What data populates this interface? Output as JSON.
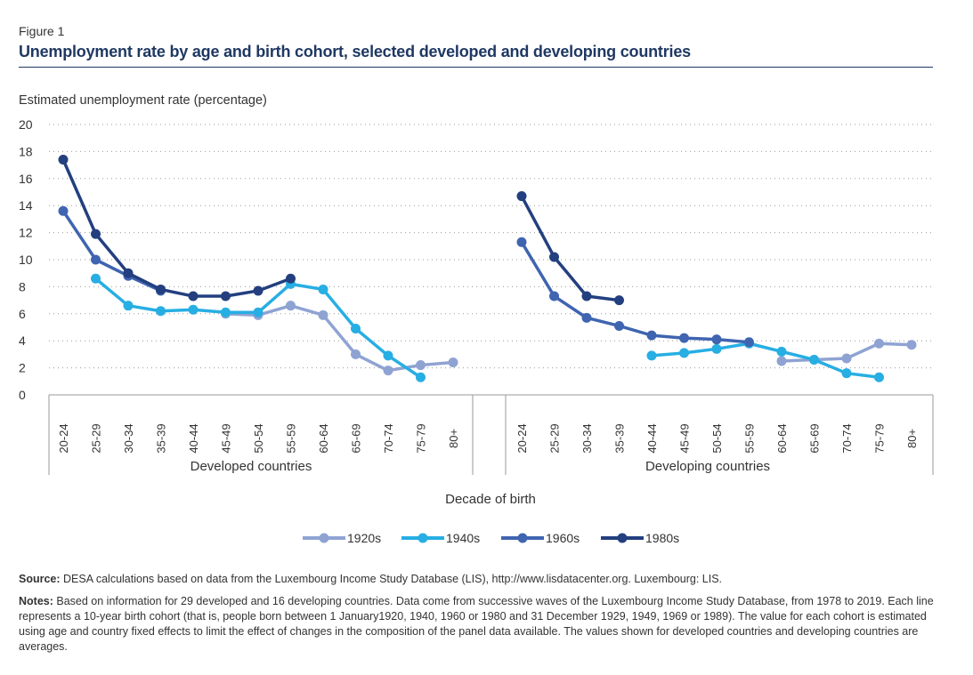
{
  "figure": {
    "label": "Figure 1",
    "title": "Unemployment rate by age and birth cohort, selected developed and developing countries"
  },
  "chart_data": {
    "type": "line",
    "ylabel": "Estimated unemployment rate (percentage)",
    "xlabel": "Decade of birth",
    "ylim": [
      0,
      20
    ],
    "yticks": [
      0,
      2,
      4,
      6,
      8,
      10,
      12,
      14,
      16,
      18,
      20
    ],
    "grid": true,
    "legend_position": "bottom",
    "categories": [
      "20-24",
      "25-29",
      "30-34",
      "35-39",
      "40-44",
      "45-49",
      "50-54",
      "55-59",
      "60-64",
      "65-69",
      "70-74",
      "75-79",
      "80+"
    ],
    "panels": [
      {
        "name": "Developed countries",
        "series": [
          {
            "name": "1920s",
            "color": "#8fa3d3",
            "values": [
              null,
              null,
              null,
              null,
              null,
              6.0,
              5.9,
              6.6,
              5.9,
              3.0,
              1.8,
              2.2,
              2.4
            ]
          },
          {
            "name": "1940s",
            "color": "#27aee3",
            "values": [
              null,
              8.6,
              6.6,
              6.2,
              6.3,
              6.1,
              6.1,
              8.2,
              7.8,
              4.9,
              2.9,
              1.3,
              null
            ]
          },
          {
            "name": "1960s",
            "color": "#3f64b0",
            "values": [
              13.6,
              10.0,
              8.8,
              7.7,
              null,
              null,
              null,
              null,
              null,
              null,
              null,
              null,
              null
            ]
          },
          {
            "name": "1980s",
            "color": "#233f7f",
            "values": [
              17.4,
              11.9,
              9.0,
              7.8,
              7.3,
              7.3,
              7.7,
              8.6,
              null,
              null,
              null,
              null,
              null
            ]
          }
        ]
      },
      {
        "name": "Developing countries",
        "series": [
          {
            "name": "1920s",
            "color": "#8fa3d3",
            "values": [
              null,
              null,
              null,
              null,
              null,
              null,
              null,
              null,
              2.5,
              2.6,
              2.7,
              3.8,
              3.7
            ]
          },
          {
            "name": "1940s",
            "color": "#27aee3",
            "values": [
              null,
              null,
              null,
              null,
              2.9,
              3.1,
              3.4,
              3.8,
              3.2,
              2.6,
              1.6,
              1.3,
              null
            ]
          },
          {
            "name": "1960s",
            "color": "#3f64b0",
            "values": [
              11.3,
              7.3,
              5.7,
              5.1,
              4.4,
              4.2,
              4.1,
              3.9,
              null,
              null,
              null,
              null,
              null
            ]
          },
          {
            "name": "1980s",
            "color": "#233f7f",
            "values": [
              14.7,
              10.2,
              7.3,
              7.0,
              null,
              null,
              null,
              null,
              null,
              null,
              null,
              null,
              null
            ]
          }
        ]
      }
    ]
  },
  "source": {
    "label": "Source:",
    "text": "DESA calculations based on data from the Luxembourg Income Study Database (LIS), http://www.lisdatacenter.org. Luxembourg: LIS."
  },
  "notes": {
    "label": "Notes:",
    "text": "Based on information for 29 developed and 16 developing countries. Data come from successive waves of the Luxembourg Income Study Database, from 1978 to 2019. Each line represents a 10-year birth cohort (that is, people born between 1 January1920, 1940, 1960 or 1980 and 31 December 1929, 1949, 1969 or 1989). The value for each cohort is estimated using age and country fixed effects to limit the effect of changes in the composition of the panel data available. The values shown for developed countries and developing countries are averages."
  }
}
